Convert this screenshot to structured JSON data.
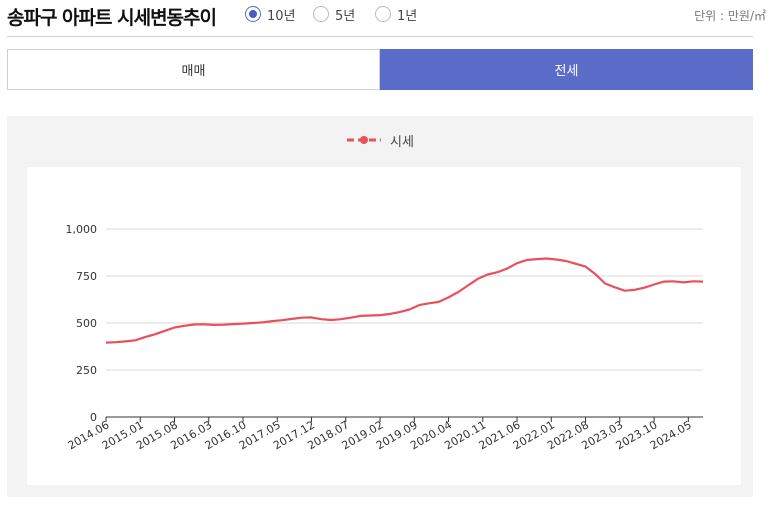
{
  "header": {
    "title": "송파구 아파트 시세변동추이",
    "unit": "단위 : 만원/㎡",
    "periods": [
      {
        "label": "10년",
        "checked": true
      },
      {
        "label": "5년",
        "checked": false
      },
      {
        "label": "1년",
        "checked": false
      }
    ]
  },
  "tabs": [
    {
      "label": "매매",
      "active": false
    },
    {
      "label": "전세",
      "active": true
    }
  ],
  "colors": {
    "accent": "#5b6bc8",
    "series": "#e8505b"
  },
  "chart_data": {
    "type": "line",
    "legend": [
      "시세"
    ],
    "ylim": [
      0,
      1000
    ],
    "yticks": [
      "0",
      "250",
      "500",
      "750",
      "1,000"
    ],
    "ytick_values": [
      0,
      250,
      500,
      750,
      1000
    ],
    "xticks": [
      "2014.06",
      "2015.01",
      "2015.08",
      "2016.03",
      "2016.10",
      "2017.05",
      "2017.12",
      "2018.07",
      "2019.02",
      "2019.09",
      "2020.04",
      "2020.11",
      "2021.06",
      "2022.01",
      "2022.08",
      "2023.03",
      "2023.10",
      "2024.05"
    ],
    "grid": true,
    "series": [
      {
        "name": "시세",
        "x": [
          "2014.06",
          "2014.08",
          "2014.10",
          "2014.12",
          "2015.02",
          "2015.04",
          "2015.06",
          "2015.08",
          "2015.10",
          "2015.12",
          "2016.02",
          "2016.04",
          "2016.06",
          "2016.08",
          "2016.10",
          "2016.12",
          "2017.02",
          "2017.04",
          "2017.06",
          "2017.08",
          "2017.10",
          "2017.12",
          "2018.02",
          "2018.04",
          "2018.06",
          "2018.08",
          "2018.10",
          "2018.12",
          "2019.02",
          "2019.04",
          "2019.06",
          "2019.08",
          "2019.10",
          "2019.12",
          "2020.02",
          "2020.04",
          "2020.06",
          "2020.08",
          "2020.10",
          "2020.12",
          "2021.02",
          "2021.04",
          "2021.06",
          "2021.08",
          "2021.10",
          "2021.12",
          "2022.02",
          "2022.04",
          "2022.06",
          "2022.08",
          "2022.10",
          "2022.12",
          "2023.02",
          "2023.04",
          "2023.06",
          "2023.08",
          "2023.10",
          "2023.12",
          "2024.02",
          "2024.04",
          "2024.06",
          "2024.08"
        ],
        "values": [
          396,
          398,
          402,
          408,
          425,
          440,
          458,
          476,
          485,
          492,
          493,
          490,
          491,
          494,
          497,
          500,
          503,
          510,
          515,
          522,
          528,
          530,
          520,
          516,
          520,
          528,
          538,
          540,
          542,
          548,
          558,
          572,
          595,
          605,
          612,
          636,
          665,
          700,
          735,
          758,
          770,
          790,
          818,
          835,
          840,
          843,
          838,
          830,
          815,
          800,
          760,
          710,
          690,
          672,
          676,
          688,
          705,
          720,
          722,
          716,
          722,
          720
        ]
      }
    ]
  }
}
